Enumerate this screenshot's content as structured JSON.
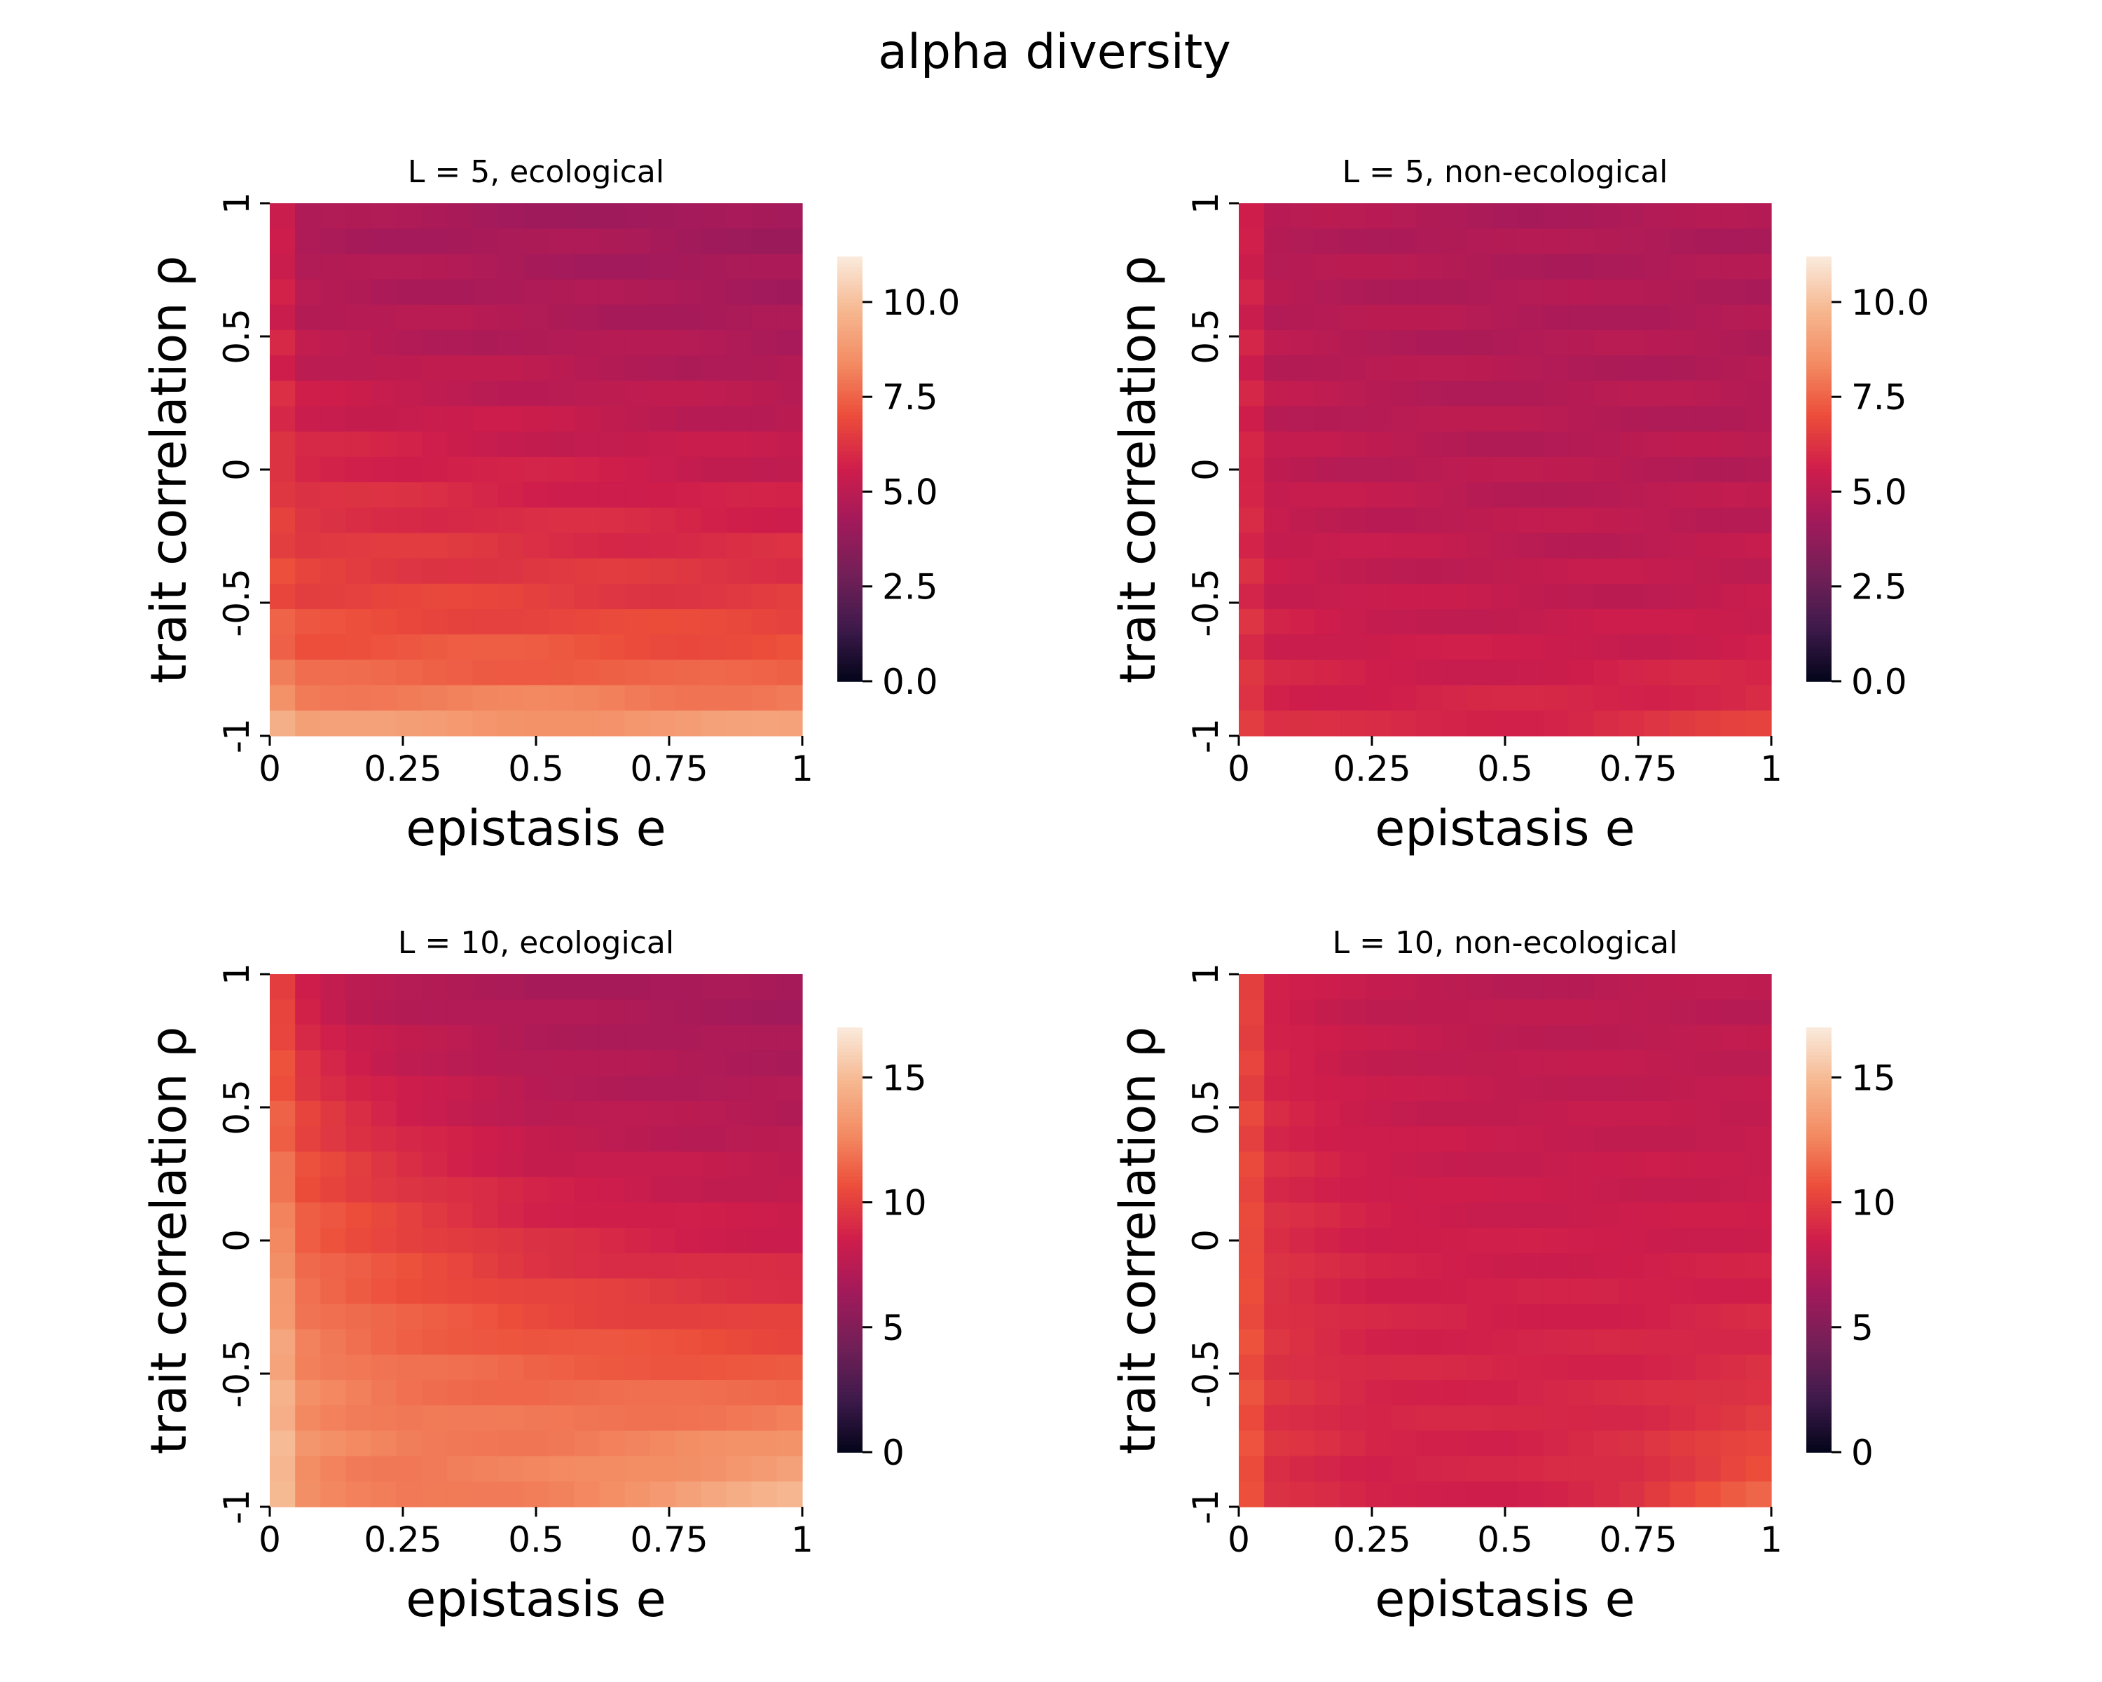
{
  "figure": {
    "title": "alpha diversity"
  },
  "colormap_stops": [
    "#03051a",
    "#3e1a4b",
    "#721f57",
    "#a11a5b",
    "#cf1d4b",
    "#ec4d3a",
    "#f38c63",
    "#f6b891",
    "#faebdd"
  ],
  "chart_data": [
    {
      "type": "heatmap",
      "title": "L = 5, ecological",
      "xlabel": "epistasis e",
      "ylabel": "trait correlation ρ",
      "x_ticks": [
        "0",
        "0.25",
        "0.5",
        "0.75",
        "1"
      ],
      "y_ticks": [
        "1",
        "0.5",
        "0",
        "-0.5",
        "-1"
      ],
      "xlim": [
        0,
        1
      ],
      "ylim": [
        -1,
        1
      ],
      "grid_cols": 21,
      "grid_rows": 21,
      "colorbar_range": [
        0,
        11.2
      ],
      "colorbar_ticks": [
        "0.0",
        "2.5",
        "5.0",
        "7.5",
        "10.0"
      ],
      "rho": [
        1,
        0.5,
        0,
        -0.5,
        -0.8,
        -0.9,
        -1
      ],
      "e": [
        0,
        0.05,
        0.25,
        0.5,
        0.75,
        1
      ],
      "values": [
        [
          6.2,
          4.5,
          4.4,
          4.3,
          4.2,
          4.1
        ],
        [
          6.3,
          5.0,
          4.8,
          4.7,
          4.6,
          4.5
        ],
        [
          6.5,
          6.0,
          5.8,
          5.6,
          5.4,
          5.3
        ],
        [
          7.3,
          6.8,
          6.7,
          6.6,
          6.5,
          6.5
        ],
        [
          8.5,
          7.6,
          7.6,
          7.6,
          7.5,
          7.5
        ],
        [
          9.5,
          8.6,
          8.5,
          8.5,
          8.4,
          8.6
        ],
        [
          10.5,
          9.2,
          9.1,
          9.0,
          9.1,
          9.3
        ]
      ]
    },
    {
      "type": "heatmap",
      "title": "L = 5, non-ecological",
      "xlabel": "epistasis e",
      "ylabel": "trait correlation ρ",
      "x_ticks": [
        "0",
        "0.25",
        "0.5",
        "0.75",
        "1"
      ],
      "y_ticks": [
        "1",
        "0.5",
        "0",
        "-0.5",
        "-1"
      ],
      "xlim": [
        0,
        1
      ],
      "ylim": [
        -1,
        1
      ],
      "grid_cols": 21,
      "grid_rows": 21,
      "colorbar_range": [
        0,
        11.2
      ],
      "colorbar_ticks": [
        "0.0",
        "2.5",
        "5.0",
        "7.5",
        "10.0"
      ],
      "rho": [
        1,
        0.5,
        0,
        -0.5,
        -0.8,
        -1
      ],
      "e": [
        0,
        0.05,
        0.25,
        0.5,
        0.75,
        1
      ],
      "values": [
        [
          6.3,
          4.8,
          4.7,
          4.6,
          4.6,
          4.6
        ],
        [
          6.3,
          4.9,
          4.8,
          4.7,
          4.7,
          4.7
        ],
        [
          6.4,
          5.2,
          5.0,
          4.9,
          4.9,
          4.9
        ],
        [
          6.5,
          5.5,
          5.3,
          5.2,
          5.2,
          5.3
        ],
        [
          6.6,
          5.8,
          5.6,
          5.6,
          5.7,
          5.9
        ],
        [
          7.0,
          6.1,
          5.9,
          6.0,
          6.2,
          6.8
        ]
      ]
    },
    {
      "type": "heatmap",
      "title": "L = 10, ecological",
      "xlabel": "epistasis e",
      "ylabel": "trait correlation ρ",
      "x_ticks": [
        "0",
        "0.25",
        "0.5",
        "0.75",
        "1"
      ],
      "y_ticks": [
        "1",
        "0.5",
        "0",
        "-0.5",
        "-1"
      ],
      "xlim": [
        0,
        1
      ],
      "ylim": [
        -1,
        1
      ],
      "grid_cols": 21,
      "grid_rows": 21,
      "colorbar_range": [
        0,
        17
      ],
      "colorbar_ticks": [
        "0",
        "5",
        "10",
        "15"
      ],
      "rho": [
        1,
        0.5,
        0,
        -0.5,
        -0.8,
        -1
      ],
      "e": [
        0,
        0.05,
        0.15,
        0.25,
        0.5,
        0.75,
        1
      ],
      "values": [
        [
          11.0,
          8.5,
          7.2,
          7.0,
          6.8,
          6.6,
          6.4
        ],
        [
          11.8,
          10.2,
          9.2,
          8.5,
          7.5,
          7.3,
          7.2
        ],
        [
          13.8,
          11.4,
          10.8,
          10.3,
          9.2,
          8.7,
          8.4
        ],
        [
          15.5,
          12.7,
          12.2,
          11.8,
          11.4,
          11.2,
          11.0
        ],
        [
          16.5,
          13.2,
          12.6,
          12.3,
          12.3,
          12.7,
          13.4
        ],
        [
          16.8,
          12.8,
          12.1,
          11.8,
          12.5,
          13.6,
          15.2
        ]
      ]
    },
    {
      "type": "heatmap",
      "title": "L = 10, non-ecological",
      "xlabel": "epistasis e",
      "ylabel": "trait correlation ρ",
      "x_ticks": [
        "0",
        "0.25",
        "0.5",
        "0.75",
        "1"
      ],
      "y_ticks": [
        "1",
        "0.5",
        "0",
        "-0.5",
        "-1"
      ],
      "xlim": [
        0,
        1
      ],
      "ylim": [
        -1,
        1
      ],
      "grid_cols": 21,
      "grid_rows": 21,
      "colorbar_range": [
        0,
        17
      ],
      "colorbar_ticks": [
        "0",
        "5",
        "10",
        "15"
      ],
      "rho": [
        1,
        0.5,
        0,
        -0.5,
        -0.8,
        -1
      ],
      "e": [
        0,
        0.05,
        0.25,
        0.5,
        0.75,
        1
      ],
      "values": [
        [
          11.2,
          8.6,
          7.8,
          7.5,
          7.5,
          7.5
        ],
        [
          11.3,
          9.0,
          8.2,
          7.9,
          7.9,
          7.9
        ],
        [
          11.4,
          9.4,
          8.6,
          8.4,
          8.4,
          8.5
        ],
        [
          11.6,
          9.6,
          8.9,
          8.8,
          8.9,
          9.3
        ],
        [
          11.7,
          9.5,
          8.8,
          8.8,
          9.3,
          10.5
        ],
        [
          11.9,
          9.3,
          8.5,
          8.6,
          9.4,
          11.8
        ]
      ]
    }
  ]
}
